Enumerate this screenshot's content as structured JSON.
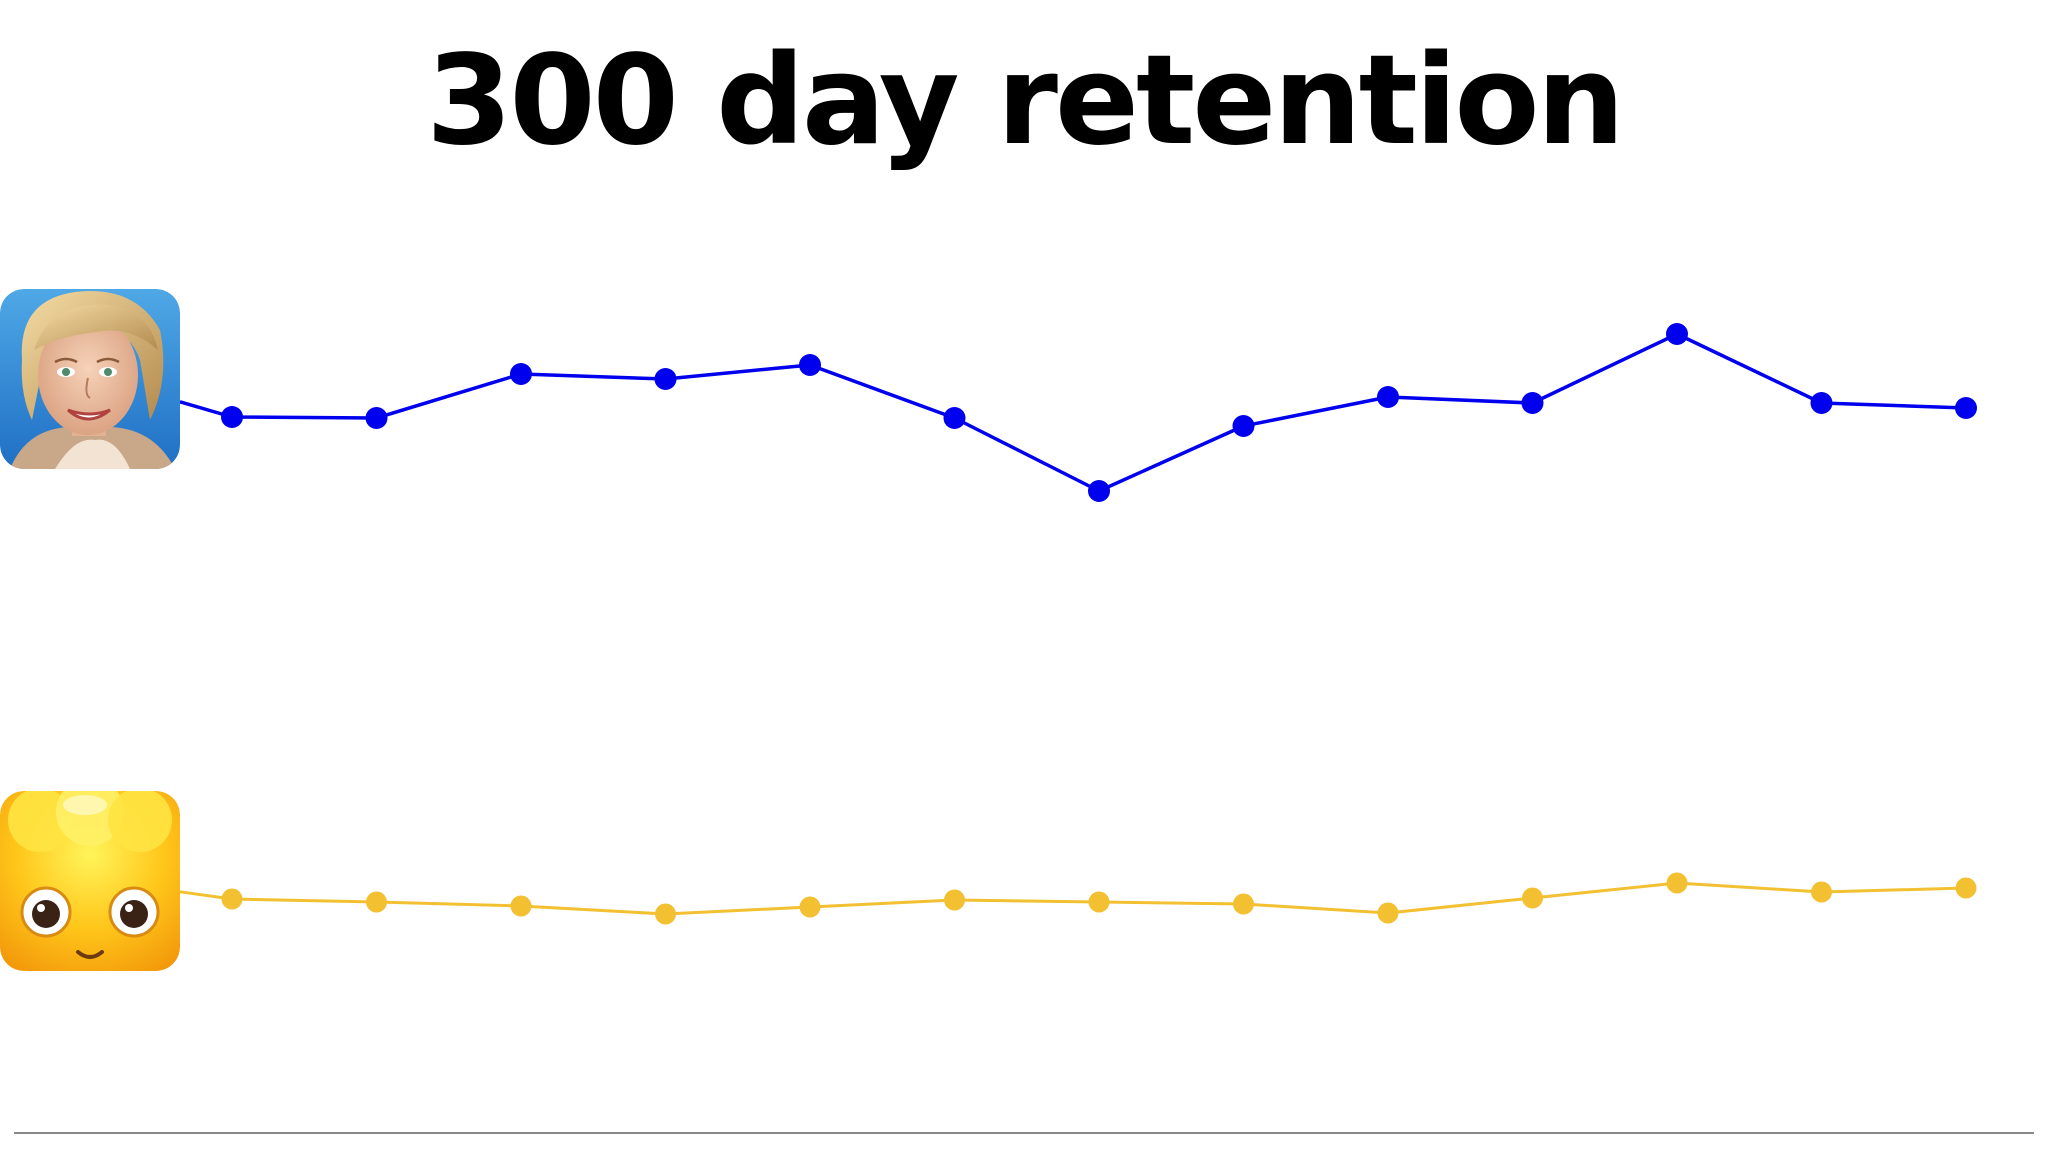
{
  "title": "300 day retention",
  "chart_data": {
    "type": "line",
    "title": "300 day retention",
    "xlabel": "",
    "ylabel": "",
    "grid": false,
    "x": [
      1,
      2,
      3,
      4,
      5,
      6,
      7,
      8,
      9,
      10,
      11,
      12,
      13
    ],
    "series": [
      {
        "icon": "woman-portrait-app-icon",
        "color": "#0000ee",
        "values": [
          417,
          418,
          374,
          379,
          365,
          418,
          491,
          426,
          397,
          403,
          334,
          403,
          408
        ]
      },
      {
        "icon": "yellow-jelly-app-icon",
        "color": "#f2c031",
        "values": [
          899,
          902,
          906,
          914,
          907,
          900,
          902,
          904,
          913,
          898,
          883,
          892,
          888
        ]
      }
    ]
  }
}
